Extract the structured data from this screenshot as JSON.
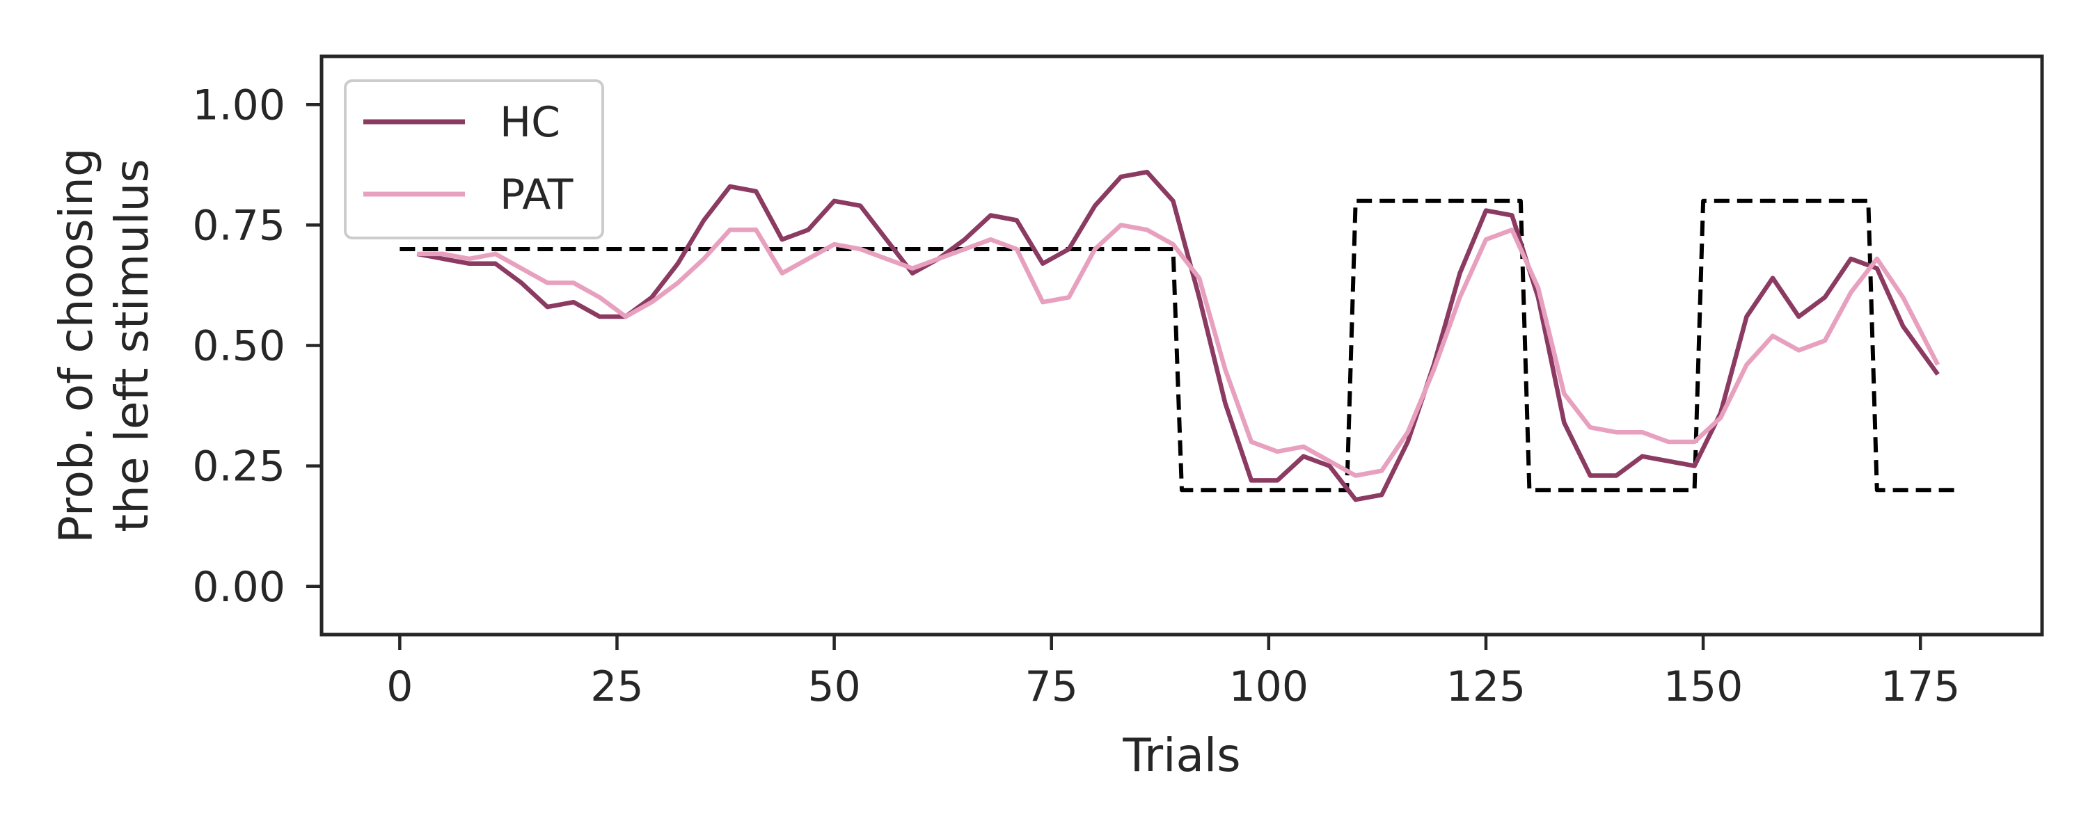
{
  "chart_data": {
    "type": "line",
    "title": "",
    "xlabel": "Trials",
    "ylabel_lines": [
      "Prob. of choosing",
      "the left stimulus"
    ],
    "xlim": [
      -9,
      189
    ],
    "ylim": [
      -0.1,
      1.1
    ],
    "xticks": [
      0,
      25,
      50,
      75,
      100,
      125,
      150,
      175
    ],
    "yticks": [
      0.0,
      0.25,
      0.5,
      0.75,
      1.0
    ],
    "ytick_labels": [
      "0.00",
      "0.25",
      "0.50",
      "0.75",
      "1.00"
    ],
    "grid": false,
    "legend_position": "top-left",
    "series": [
      {
        "name": "HC",
        "color": "#8b3a62",
        "style": "solid",
        "x": [
          2,
          5,
          8,
          11,
          14,
          17,
          20,
          23,
          26,
          29,
          32,
          35,
          38,
          41,
          44,
          47,
          50,
          53,
          56,
          59,
          62,
          65,
          68,
          71,
          74,
          77,
          80,
          83,
          86,
          89,
          92,
          95,
          98,
          101,
          104,
          107,
          110,
          113,
          116,
          119,
          122,
          125,
          128,
          131,
          134,
          137,
          140,
          143,
          146,
          149,
          152,
          155,
          158,
          161,
          164,
          167,
          170,
          173,
          177
        ],
        "y": [
          0.69,
          0.68,
          0.67,
          0.67,
          0.63,
          0.58,
          0.59,
          0.56,
          0.56,
          0.6,
          0.67,
          0.76,
          0.83,
          0.82,
          0.72,
          0.74,
          0.8,
          0.79,
          0.72,
          0.65,
          0.68,
          0.72,
          0.77,
          0.76,
          0.67,
          0.7,
          0.79,
          0.85,
          0.86,
          0.8,
          0.6,
          0.38,
          0.22,
          0.22,
          0.27,
          0.25,
          0.18,
          0.19,
          0.3,
          0.46,
          0.65,
          0.78,
          0.77,
          0.6,
          0.34,
          0.23,
          0.23,
          0.27,
          0.26,
          0.25,
          0.36,
          0.56,
          0.64,
          0.56,
          0.6,
          0.68,
          0.66,
          0.54,
          0.44
        ]
      },
      {
        "name": "PAT",
        "color": "#e8a0bf",
        "style": "solid",
        "x": [
          2,
          5,
          8,
          11,
          14,
          17,
          20,
          23,
          26,
          29,
          32,
          35,
          38,
          41,
          44,
          47,
          50,
          53,
          56,
          59,
          62,
          65,
          68,
          71,
          74,
          77,
          80,
          83,
          86,
          89,
          92,
          95,
          98,
          101,
          104,
          107,
          110,
          113,
          116,
          119,
          122,
          125,
          128,
          131,
          134,
          137,
          140,
          143,
          146,
          149,
          152,
          155,
          158,
          161,
          164,
          167,
          170,
          173,
          177
        ],
        "y": [
          0.69,
          0.69,
          0.68,
          0.69,
          0.66,
          0.63,
          0.63,
          0.6,
          0.56,
          0.59,
          0.63,
          0.68,
          0.74,
          0.74,
          0.65,
          0.68,
          0.71,
          0.7,
          0.68,
          0.66,
          0.68,
          0.7,
          0.72,
          0.7,
          0.59,
          0.6,
          0.7,
          0.75,
          0.74,
          0.71,
          0.64,
          0.45,
          0.3,
          0.28,
          0.29,
          0.26,
          0.23,
          0.24,
          0.32,
          0.45,
          0.6,
          0.72,
          0.74,
          0.62,
          0.4,
          0.33,
          0.32,
          0.32,
          0.3,
          0.3,
          0.35,
          0.46,
          0.52,
          0.49,
          0.51,
          0.61,
          0.68,
          0.6,
          0.46
        ]
      },
      {
        "color": "#000000",
        "style": "dashed",
        "x": [
          0,
          89,
          90,
          109,
          110,
          129,
          130,
          149,
          150,
          169,
          170,
          179
        ],
        "y": [
          0.7,
          0.7,
          0.2,
          0.2,
          0.8,
          0.8,
          0.2,
          0.2,
          0.8,
          0.8,
          0.2,
          0.2
        ]
      }
    ]
  }
}
